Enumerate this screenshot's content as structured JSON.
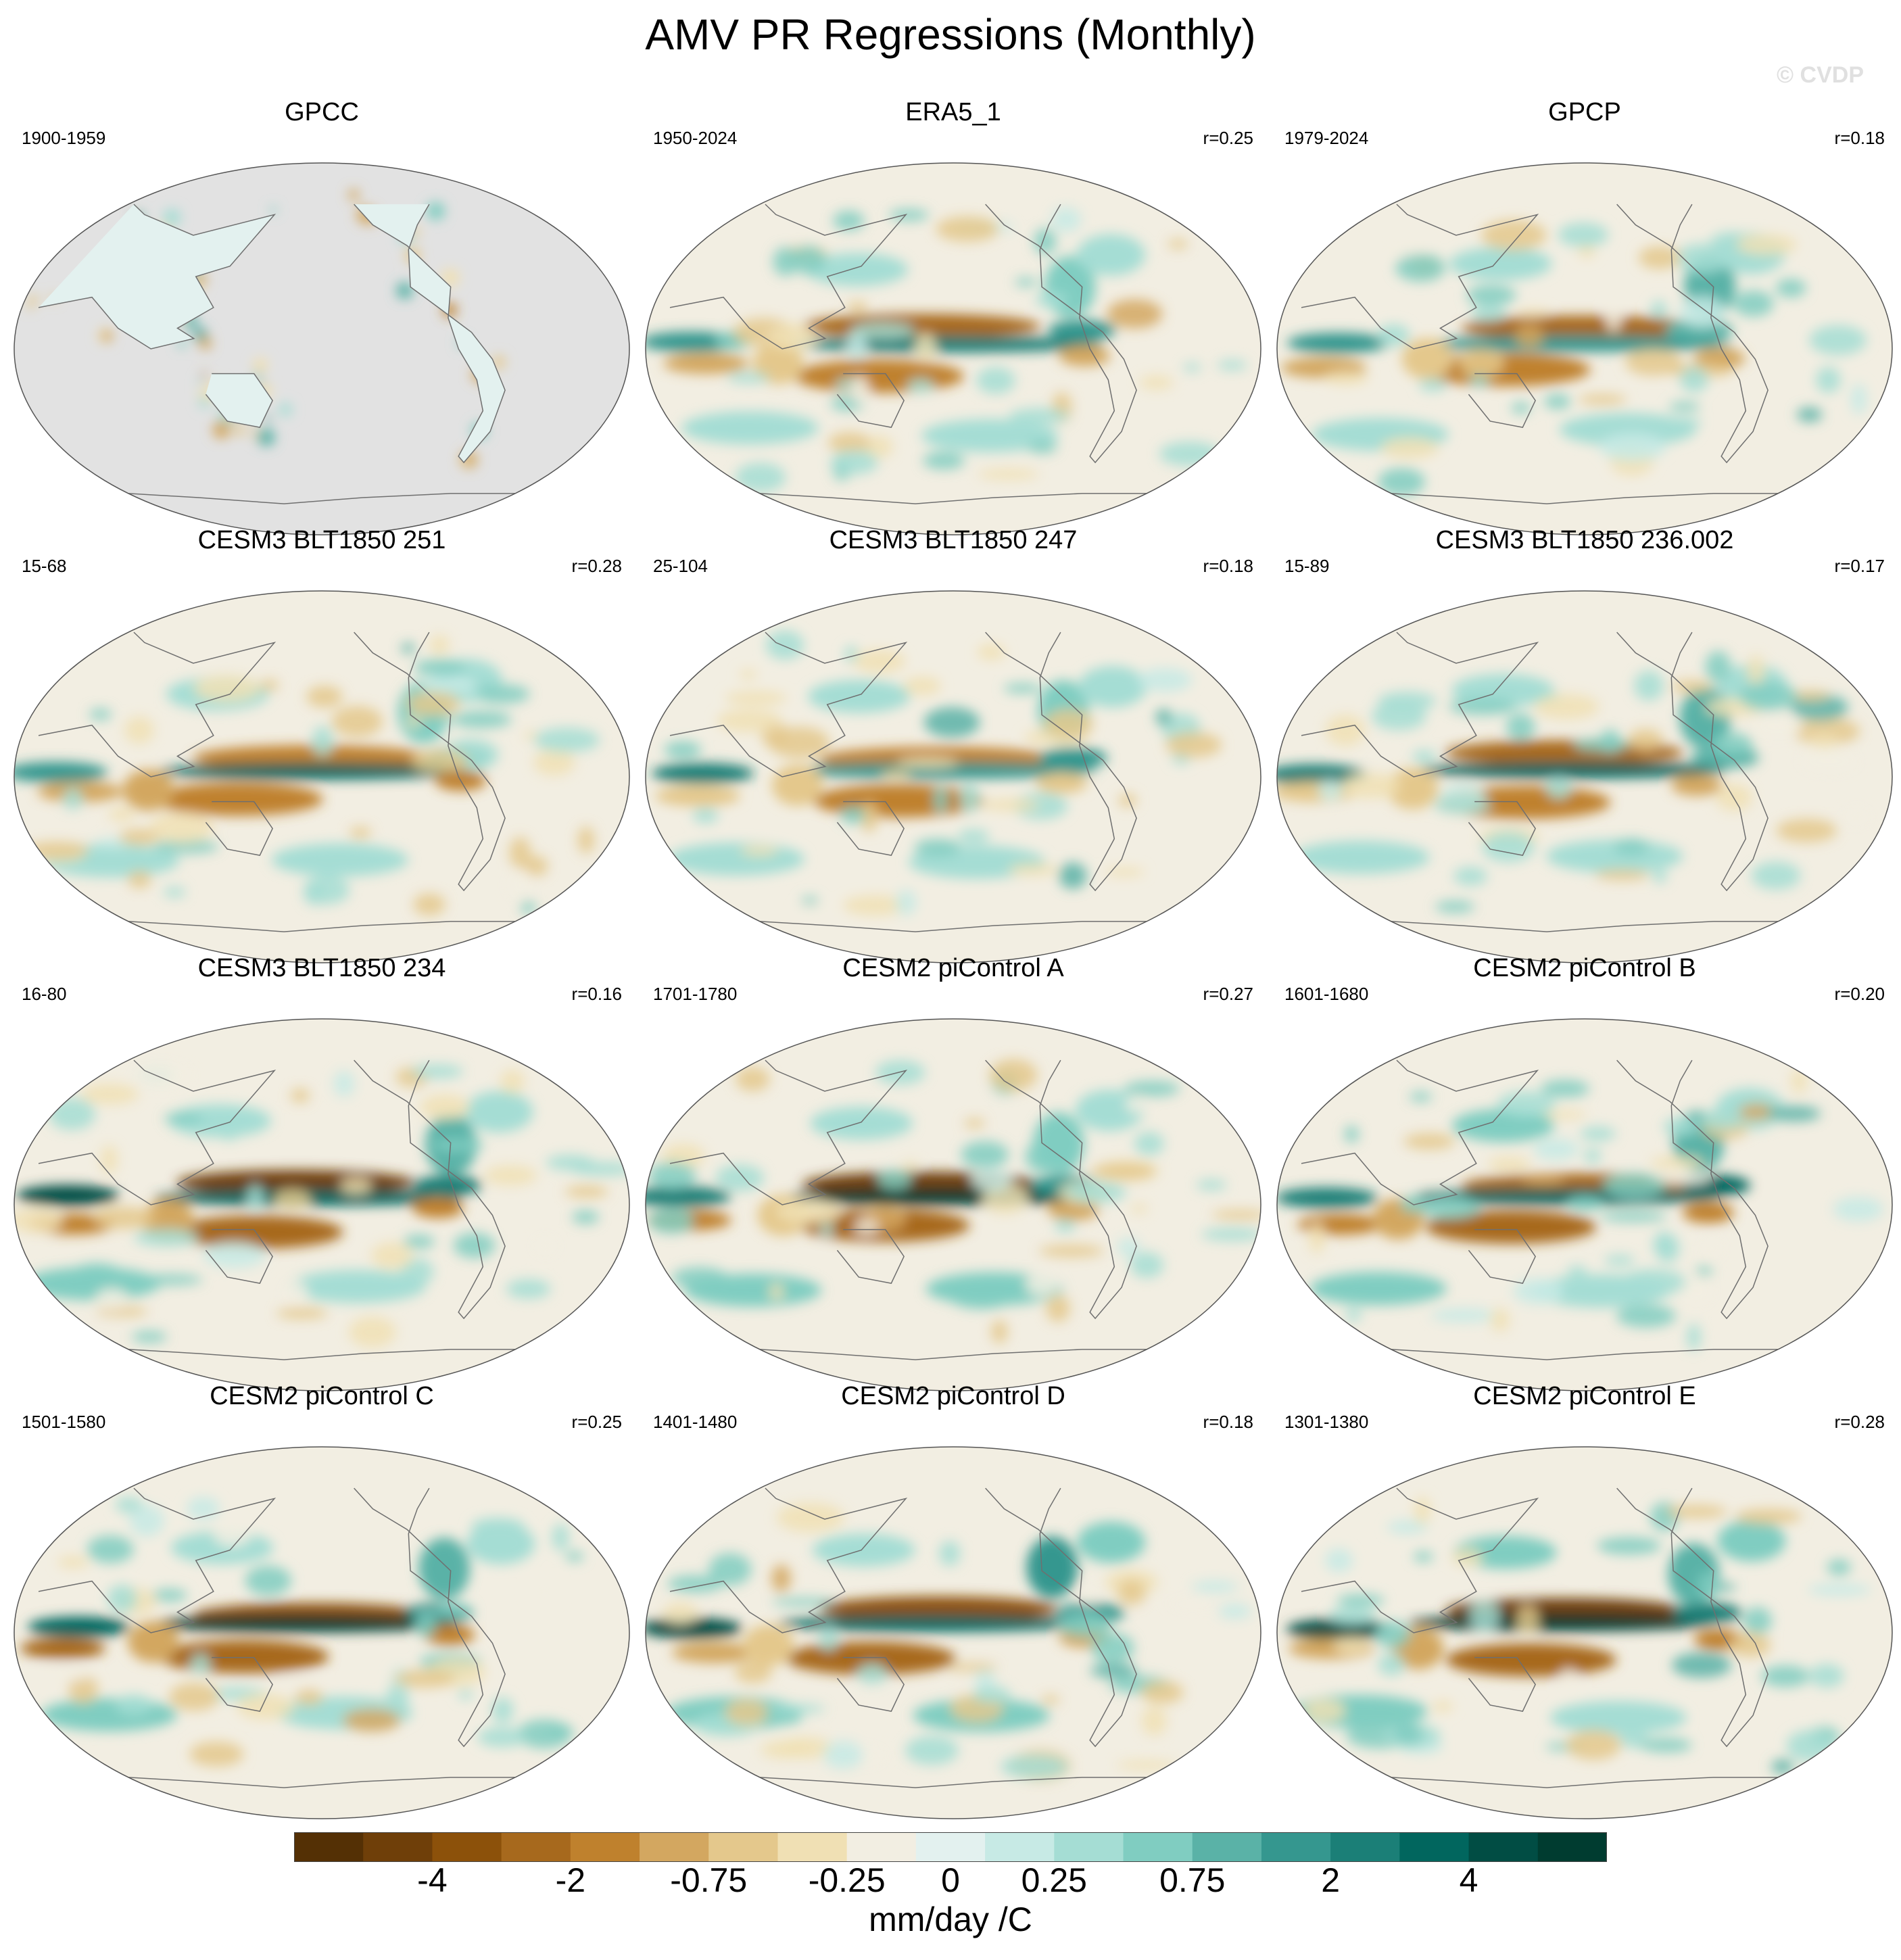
{
  "figure": {
    "title": "AMV PR Regressions (Monthly)",
    "copyright": "© CVDP"
  },
  "panels": [
    {
      "title": "GPCC",
      "period": "1900-1959",
      "r": "",
      "land_only": true
    },
    {
      "title": "ERA5_1",
      "period": "1950-2024",
      "r": "r=0.25",
      "land_only": false
    },
    {
      "title": "GPCP",
      "period": "1979-2024",
      "r": "r=0.18",
      "land_only": false
    },
    {
      "title": "CESM3 BLT1850 251",
      "period": "15-68",
      "r": "r=0.28",
      "land_only": false
    },
    {
      "title": "CESM3 BLT1850 247",
      "period": "25-104",
      "r": "r=0.18",
      "land_only": false
    },
    {
      "title": "CESM3 BLT1850 236.002",
      "period": "15-89",
      "r": "r=0.17",
      "land_only": false
    },
    {
      "title": "CESM3 BLT1850 234",
      "period": "16-80",
      "r": "r=0.16",
      "land_only": false
    },
    {
      "title": "CESM2 piControl A",
      "period": "1701-1780",
      "r": "r=0.27",
      "land_only": false
    },
    {
      "title": "CESM2 piControl B",
      "period": "1601-1680",
      "r": "r=0.20",
      "land_only": false
    },
    {
      "title": "CESM2 piControl C",
      "period": "1501-1580",
      "r": "r=0.25",
      "land_only": false
    },
    {
      "title": "CESM2 piControl D",
      "period": "1401-1480",
      "r": "r=0.18",
      "land_only": false
    },
    {
      "title": "CESM2 piControl E",
      "period": "1301-1380",
      "r": "r=0.28",
      "land_only": false
    }
  ],
  "colorbar": {
    "colors": [
      "#543005",
      "#6f3f09",
      "#8c510a",
      "#a7691d",
      "#bf812d",
      "#d3a760",
      "#e4c88c",
      "#f0e0b4",
      "#f2eee2",
      "#e3f1ef",
      "#c7eae5",
      "#a5ddd4",
      "#80cdc1",
      "#5ab2a7",
      "#35978f",
      "#1b7f77",
      "#01665e",
      "#014d44",
      "#003c30"
    ],
    "tick_labels": [
      "-4",
      "-2",
      "-0.75",
      "-0.25",
      "0",
      "0.25",
      "0.75",
      "2",
      "4"
    ],
    "units": "mm/day /C"
  }
}
